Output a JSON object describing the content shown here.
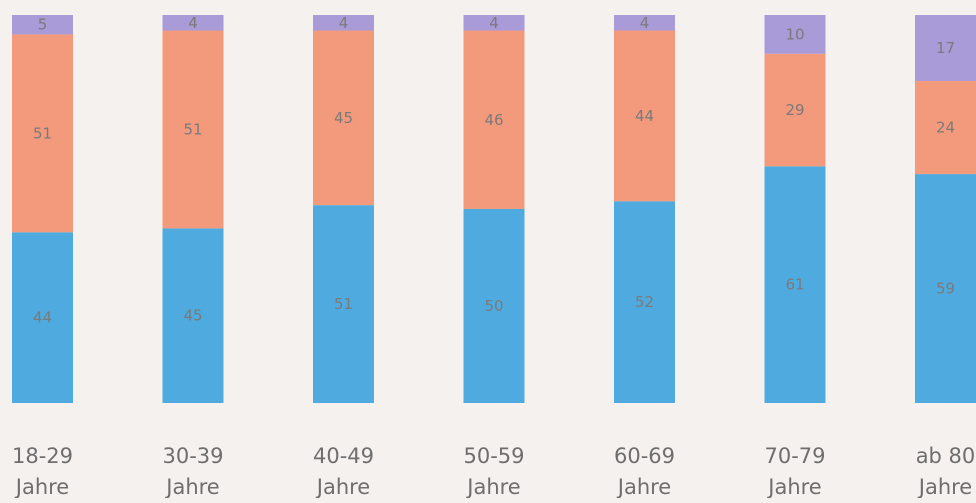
{
  "chart_data": {
    "type": "bar",
    "stacked": true,
    "categories": [
      [
        "18-29",
        "Jahre"
      ],
      [
        "30-39",
        "Jahre"
      ],
      [
        "40-49",
        "Jahre"
      ],
      [
        "50-59",
        "Jahre"
      ],
      [
        "60-69",
        "Jahre"
      ],
      [
        "70-79",
        "Jahre"
      ],
      [
        "ab 80",
        "Jahre"
      ]
    ],
    "series": [
      {
        "color": "#4fabdf",
        "values": [
          44,
          45,
          51,
          50,
          52,
          61,
          59
        ]
      },
      {
        "color": "#f49a7c",
        "values": [
          51,
          51,
          45,
          46,
          44,
          29,
          24
        ]
      },
      {
        "color": "#a99ad8",
        "values": [
          5,
          4,
          4,
          4,
          4,
          10,
          17
        ]
      }
    ],
    "ylim": [
      0,
      100
    ],
    "grid": false,
    "legend": false,
    "background": "#f4f1ee"
  }
}
